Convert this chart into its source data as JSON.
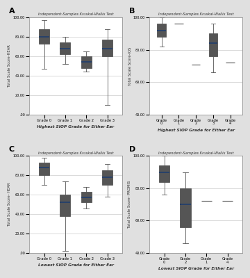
{
  "box_color": "#5b9bd5",
  "box_color_dark": "#4472a8",
  "median_color": "#1f3d6e",
  "outer_bg": "#e0e0e0",
  "panel_bg": "#ffffff",
  "inner_bg": "#f5f5f5",
  "panels": [
    {
      "label": "A",
      "title": "Independent-Samples Kruskal-Wallis Test",
      "ylabel": "Total Scale Score-HEAR",
      "xlabel": "Highest SIOP Grade for Either Ear",
      "categories": [
        "Grade 0",
        "Grade 1",
        "Grade 2",
        "Grade 3"
      ],
      "ylim": [
        0,
        100
      ],
      "yticks": [
        0,
        20,
        40,
        60,
        80,
        100
      ],
      "ytick_labels": [
        ".00",
        "20.00",
        "40.00",
        "60.00",
        "80.00",
        "100.00"
      ],
      "boxes": [
        {
          "q1": 73,
          "med": 80,
          "q3": 88,
          "whislo": 47,
          "whishi": 97,
          "fliers": []
        },
        {
          "q1": 62,
          "med": 68,
          "q3": 74,
          "whislo": 52,
          "whishi": 80,
          "fliers": []
        },
        {
          "q1": 48,
          "med": 54,
          "q3": 60,
          "whislo": 44,
          "whishi": 65,
          "fliers": []
        },
        {
          "q1": 60,
          "med": 68,
          "q3": 77,
          "whislo": 10,
          "whishi": 88,
          "fliers": []
        }
      ],
      "has_flier_only": [
        false,
        false,
        false,
        false
      ]
    },
    {
      "label": "B",
      "title": "Independent-Samples Kruskal-Wallis Test",
      "ylabel": "Total Scale Score-IQS",
      "xlabel": "Highest SIOP Grade for Either Ear",
      "categories": [
        "Grade\n0",
        "Grade\n1",
        "Grade\n2",
        "Grade\n3",
        "Grade\n4"
      ],
      "ylim": [
        40,
        100
      ],
      "yticks": [
        40,
        60,
        80,
        100
      ],
      "ytick_labels": [
        "40.00",
        "60.00",
        "80.00",
        "100.00"
      ],
      "boxes": [
        {
          "q1": 88,
          "med": 92,
          "q3": 96,
          "whislo": 82,
          "whishi": 100,
          "fliers": []
        },
        {
          "q1": 96,
          "med": 96,
          "q3": 96,
          "whislo": 96,
          "whishi": 96,
          "fliers": []
        },
        {
          "q1": 71,
          "med": 71,
          "q3": 71,
          "whislo": 71,
          "whishi": 71,
          "fliers": []
        },
        {
          "q1": 76,
          "med": 84,
          "q3": 90,
          "whislo": 66,
          "whishi": 96,
          "fliers": []
        },
        {
          "q1": 72,
          "med": 72,
          "q3": 72,
          "whislo": 72,
          "whishi": 72,
          "fliers": []
        }
      ],
      "has_flier_only": [
        false,
        true,
        true,
        false,
        true
      ]
    },
    {
      "label": "C",
      "title": "Independent-Samples Kruskal-Wallis Test",
      "ylabel": "Total Scale Score- HEAR",
      "xlabel": "Lowest SIOP Grade for Either Ear",
      "categories": [
        "Grade 0",
        "Grade 1",
        "Grade 2",
        "Grade 3"
      ],
      "ylim": [
        0,
        100
      ],
      "yticks": [
        0,
        20,
        40,
        60,
        80,
        100
      ],
      "ytick_labels": [
        ".00",
        "20.00",
        "40.00",
        "60.00",
        "80.00",
        "100.00"
      ],
      "boxes": [
        {
          "q1": 80,
          "med": 88,
          "q3": 93,
          "whislo": 70,
          "whishi": 98,
          "fliers": []
        },
        {
          "q1": 38,
          "med": 52,
          "q3": 60,
          "whislo": 2,
          "whishi": 74,
          "fliers": []
        },
        {
          "q1": 52,
          "med": 57,
          "q3": 63,
          "whislo": 46,
          "whishi": 68,
          "fliers": []
        },
        {
          "q1": 70,
          "med": 78,
          "q3": 85,
          "whislo": 58,
          "whishi": 92,
          "fliers": []
        }
      ],
      "has_flier_only": [
        false,
        false,
        false,
        false
      ]
    },
    {
      "label": "D",
      "title": "Independent-Samples Kruskal-Wallis Test",
      "ylabel": "Total Scale Score- PROMIS",
      "xlabel": "Lowest SIOP Grade for Either Ear",
      "categories": [
        "Grade\n0",
        "Grade\n2",
        "Grade\n1",
        "Grade\n4"
      ],
      "ylim": [
        40,
        100
      ],
      "yticks": [
        40,
        60,
        80,
        100
      ],
      "ytick_labels": [
        "40.00",
        "60.00",
        "80.00",
        "100.00"
      ],
      "boxes": [
        {
          "q1": 84,
          "med": 90,
          "q3": 94,
          "whislo": 76,
          "whishi": 100,
          "fliers": []
        },
        {
          "q1": 56,
          "med": 70,
          "q3": 80,
          "whislo": 46,
          "whishi": 90,
          "fliers": []
        },
        {
          "q1": 72,
          "med": 72,
          "q3": 72,
          "whislo": 72,
          "whishi": 72,
          "fliers": []
        },
        {
          "q1": 72,
          "med": 72,
          "q3": 72,
          "whislo": 72,
          "whishi": 72,
          "fliers": []
        }
      ],
      "has_flier_only": [
        false,
        false,
        true,
        true
      ]
    }
  ]
}
